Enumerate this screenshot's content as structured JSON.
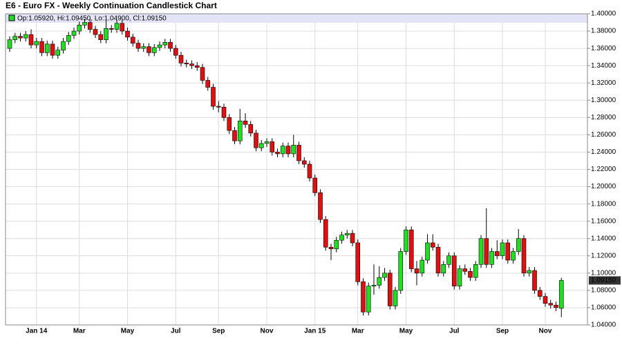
{
  "chart_data": {
    "type": "candlestick",
    "title": "E6 - Euro FX - Weekly Continuation Candlestick Chart",
    "legend_text": "Op:1.05920, Hi:1.09450, Lo:1.04900, Cl:1.09150",
    "last_price_label": "1.09150",
    "up_color": "#22dd22",
    "down_color": "#dd1111",
    "grid": true,
    "categories": [
      null,
      null,
      null,
      null,
      null,
      "Jan 14",
      null,
      null,
      null,
      null,
      null,
      null,
      null,
      "Mar",
      null,
      null,
      null,
      null,
      null,
      null,
      null,
      null,
      "May",
      null,
      null,
      null,
      null,
      null,
      null,
      null,
      null,
      "Jul",
      null,
      null,
      null,
      null,
      null,
      null,
      null,
      "Sep",
      null,
      null,
      null,
      null,
      null,
      null,
      null,
      null,
      "Nov",
      null,
      null,
      null,
      null,
      null,
      null,
      null,
      null,
      "Jan 15",
      null,
      null,
      null,
      null,
      null,
      null,
      null,
      "Mar",
      null,
      null,
      null,
      null,
      null,
      null,
      null,
      null,
      "May",
      null,
      null,
      null,
      null,
      null,
      null,
      null,
      null,
      "Jul",
      null,
      null,
      null,
      null,
      null,
      null,
      null,
      null,
      "Sep",
      null,
      null,
      null,
      null,
      null,
      null,
      null,
      "Nov",
      null,
      null,
      null
    ],
    "open": [
      1.36,
      1.37,
      1.374,
      1.372,
      1.376,
      1.364,
      1.368,
      1.355,
      1.365,
      1.352,
      1.358,
      1.368,
      1.375,
      1.38,
      1.387,
      1.39,
      1.382,
      1.376,
      1.37,
      1.383,
      1.382,
      1.389,
      1.38,
      1.373,
      1.366,
      1.36,
      1.362,
      1.355,
      1.361,
      1.364,
      1.367,
      1.36,
      1.352,
      1.343,
      1.342,
      1.34,
      1.338,
      1.323,
      1.315,
      1.293,
      1.292,
      1.28,
      1.265,
      1.253,
      1.276,
      1.272,
      1.262,
      1.245,
      1.25,
      1.252,
      1.24,
      1.238,
      1.247,
      1.238,
      1.248,
      1.23,
      1.226,
      1.21,
      1.193,
      1.162,
      1.13,
      1.128,
      1.138,
      1.144,
      1.146,
      1.135,
      1.09,
      1.055,
      1.085,
      1.086,
      1.095,
      1.1,
      1.062,
      1.08,
      1.125,
      1.15,
      1.105,
      1.1,
      1.115,
      1.135,
      1.13,
      1.1,
      1.11,
      1.12,
      1.085,
      1.105,
      1.102,
      1.095,
      1.11,
      1.14,
      1.11,
      1.125,
      1.12,
      1.135,
      1.115,
      1.125,
      1.14,
      1.1,
      1.103,
      1.08,
      1.073,
      1.065,
      1.063,
      1.0592
    ],
    "high": [
      1.374,
      1.378,
      1.378,
      1.38,
      1.382,
      1.372,
      1.372,
      1.369,
      1.369,
      1.362,
      1.372,
      1.379,
      1.384,
      1.391,
      1.394,
      1.394,
      1.386,
      1.38,
      1.392,
      1.387,
      1.393,
      1.393,
      1.384,
      1.377,
      1.37,
      1.366,
      1.366,
      1.365,
      1.368,
      1.371,
      1.371,
      1.364,
      1.356,
      1.347,
      1.346,
      1.344,
      1.342,
      1.327,
      1.319,
      1.299,
      1.296,
      1.284,
      1.269,
      1.29,
      1.285,
      1.276,
      1.266,
      1.254,
      1.256,
      1.256,
      1.244,
      1.251,
      1.251,
      1.26,
      1.252,
      1.234,
      1.23,
      1.214,
      1.197,
      1.166,
      1.134,
      1.142,
      1.148,
      1.15,
      1.15,
      1.139,
      1.094,
      1.089,
      1.11,
      1.108,
      1.106,
      1.104,
      1.084,
      1.129,
      1.154,
      1.154,
      1.114,
      1.119,
      1.145,
      1.145,
      1.134,
      1.114,
      1.124,
      1.124,
      1.109,
      1.11,
      1.106,
      1.114,
      1.144,
      1.175,
      1.129,
      1.138,
      1.139,
      1.139,
      1.129,
      1.151,
      1.144,
      1.107,
      1.107,
      1.084,
      1.077,
      1.069,
      1.067,
      1.0945
    ],
    "low": [
      1.356,
      1.366,
      1.368,
      1.368,
      1.36,
      1.36,
      1.351,
      1.351,
      1.348,
      1.348,
      1.354,
      1.364,
      1.371,
      1.376,
      1.383,
      1.378,
      1.372,
      1.366,
      1.366,
      1.378,
      1.378,
      1.376,
      1.369,
      1.362,
      1.356,
      1.356,
      1.351,
      1.351,
      1.357,
      1.36,
      1.356,
      1.348,
      1.339,
      1.338,
      1.336,
      1.334,
      1.319,
      1.311,
      1.289,
      1.286,
      1.276,
      1.261,
      1.249,
      1.249,
      1.268,
      1.258,
      1.241,
      1.241,
      1.246,
      1.236,
      1.234,
      1.234,
      1.234,
      1.234,
      1.226,
      1.222,
      1.206,
      1.189,
      1.158,
      1.126,
      1.115,
      1.124,
      1.134,
      1.14,
      1.131,
      1.086,
      1.051,
      1.051,
      1.075,
      1.082,
      1.091,
      1.058,
      1.058,
      1.076,
      1.121,
      1.101,
      1.086,
      1.096,
      1.111,
      1.126,
      1.096,
      1.096,
      1.106,
      1.081,
      1.081,
      1.098,
      1.091,
      1.091,
      1.106,
      1.106,
      1.106,
      1.116,
      1.116,
      1.111,
      1.111,
      1.121,
      1.096,
      1.096,
      1.076,
      1.069,
      1.061,
      1.059,
      1.056,
      1.049
    ],
    "close": [
      1.37,
      1.374,
      1.372,
      1.376,
      1.364,
      1.368,
      1.355,
      1.365,
      1.352,
      1.358,
      1.368,
      1.375,
      1.38,
      1.387,
      1.39,
      1.382,
      1.376,
      1.37,
      1.383,
      1.382,
      1.389,
      1.38,
      1.373,
      1.366,
      1.36,
      1.362,
      1.355,
      1.361,
      1.364,
      1.367,
      1.36,
      1.352,
      1.343,
      1.342,
      1.34,
      1.338,
      1.323,
      1.315,
      1.293,
      1.292,
      1.28,
      1.265,
      1.253,
      1.276,
      1.272,
      1.262,
      1.245,
      1.25,
      1.252,
      1.24,
      1.238,
      1.247,
      1.238,
      1.248,
      1.23,
      1.226,
      1.21,
      1.193,
      1.162,
      1.13,
      1.128,
      1.138,
      1.144,
      1.146,
      1.135,
      1.09,
      1.055,
      1.085,
      1.086,
      1.095,
      1.1,
      1.062,
      1.08,
      1.125,
      1.15,
      1.105,
      1.1,
      1.115,
      1.135,
      1.13,
      1.1,
      1.11,
      1.12,
      1.085,
      1.105,
      1.102,
      1.095,
      1.11,
      1.14,
      1.11,
      1.125,
      1.12,
      1.135,
      1.115,
      1.125,
      1.14,
      1.1,
      1.103,
      1.08,
      1.073,
      1.065,
      1.063,
      1.06,
      1.0915
    ],
    "ylim": [
      1.04,
      1.4
    ],
    "yticks": [
      {
        "value": 1.04,
        "label": "1.04000"
      },
      {
        "value": 1.06,
        "label": "1.06000"
      },
      {
        "value": 1.08,
        "label": "1.08000"
      },
      {
        "value": 1.1,
        "label": "1.10000"
      },
      {
        "value": 1.12,
        "label": "1.12000"
      },
      {
        "value": 1.14,
        "label": "1.14000"
      },
      {
        "value": 1.16,
        "label": "1.16000"
      },
      {
        "value": 1.18,
        "label": "1.18000"
      },
      {
        "value": 1.2,
        "label": "1.20000"
      },
      {
        "value": 1.22,
        "label": "1.22000"
      },
      {
        "value": 1.24,
        "label": "1.24000"
      },
      {
        "value": 1.26,
        "label": "1.26000"
      },
      {
        "value": 1.28,
        "label": "1.28000"
      },
      {
        "value": 1.3,
        "label": "1.30000"
      },
      {
        "value": 1.32,
        "label": "1.32000"
      },
      {
        "value": 1.34,
        "label": "1.34000"
      },
      {
        "value": 1.36,
        "label": "1.36000"
      },
      {
        "value": 1.38,
        "label": "1.38000"
      },
      {
        "value": 1.4,
        "label": "1.40000"
      }
    ]
  }
}
